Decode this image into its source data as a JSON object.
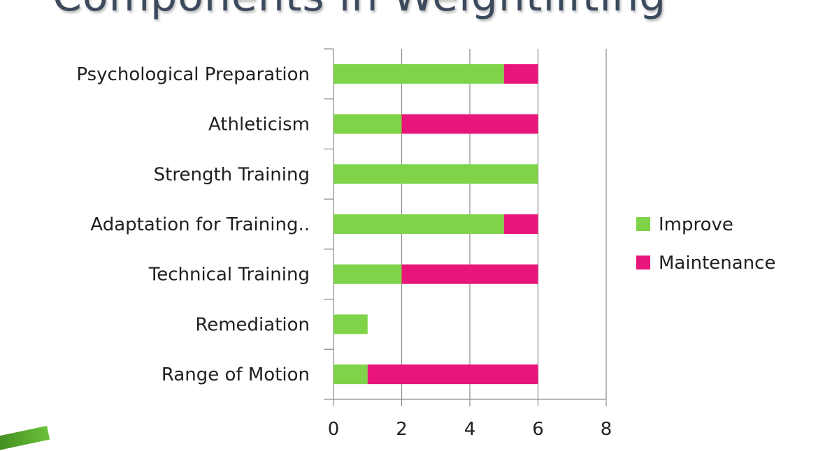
{
  "slide": {
    "title": "Components in Weightlifting"
  },
  "chart_data": {
    "type": "bar",
    "orientation": "horizontal",
    "stacked": true,
    "categories": [
      "Psychological Preparation",
      "Athleticism",
      "Strength Training",
      "Adaptation for Training..",
      "Technical Training",
      "Remediation",
      "Range of Motion"
    ],
    "series": [
      {
        "name": "Improve",
        "color": "#7ed348",
        "values": [
          5,
          2,
          6,
          5,
          2,
          1,
          1
        ]
      },
      {
        "name": "Maintenance",
        "color": "#e8157a",
        "values": [
          1,
          4,
          0,
          1,
          4,
          0,
          5
        ]
      }
    ],
    "xlim": [
      0,
      8
    ],
    "xticks": [
      "0",
      "2",
      "4",
      "6",
      "8"
    ],
    "grid": "vertical",
    "legend_position": "right",
    "title": "",
    "xlabel": "",
    "ylabel": ""
  }
}
